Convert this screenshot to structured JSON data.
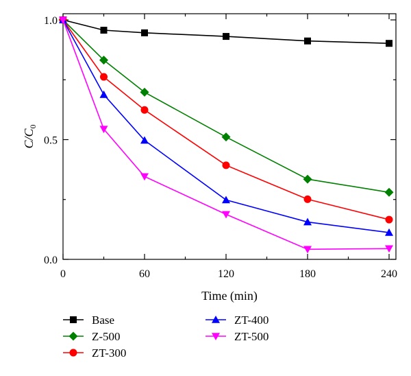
{
  "chart_data": {
    "type": "line",
    "xlabel": "Time (min)",
    "ylabel": {
      "main": "C/C",
      "sub": "0"
    },
    "x": [
      0,
      30,
      60,
      120,
      180,
      240
    ],
    "xlim": [
      0,
      240
    ],
    "ylim": [
      0,
      1.0
    ],
    "xticks": [
      0,
      60,
      120,
      180,
      240
    ],
    "xtick_labels": [
      "0",
      "60",
      "120",
      "180",
      "240"
    ],
    "yticks": [
      0,
      0.5,
      1.0
    ],
    "ytick_labels": [
      "0.0",
      "0.5",
      "1.0"
    ],
    "grid": false,
    "legend_position": "bottom",
    "series": [
      {
        "name": "Base",
        "color": "#000000",
        "marker": "square",
        "values": [
          1.0,
          0.957,
          0.946,
          0.931,
          0.912,
          0.902
        ]
      },
      {
        "name": "Z-500",
        "color": "#008000",
        "marker": "diamond",
        "values": [
          1.0,
          0.832,
          0.698,
          0.511,
          0.335,
          0.28
        ]
      },
      {
        "name": "ZT-300",
        "color": "#ff0000",
        "marker": "circle",
        "values": [
          1.0,
          0.762,
          0.624,
          0.393,
          0.251,
          0.166
        ]
      },
      {
        "name": "ZT-400",
        "color": "#0000ff",
        "marker": "triangle-up",
        "values": [
          1.0,
          0.688,
          0.497,
          0.248,
          0.156,
          0.112
        ]
      },
      {
        "name": "ZT-500",
        "color": "#ff00ff",
        "marker": "triangle-down",
        "values": [
          1.0,
          0.544,
          0.346,
          0.188,
          0.042,
          0.045
        ]
      }
    ]
  }
}
